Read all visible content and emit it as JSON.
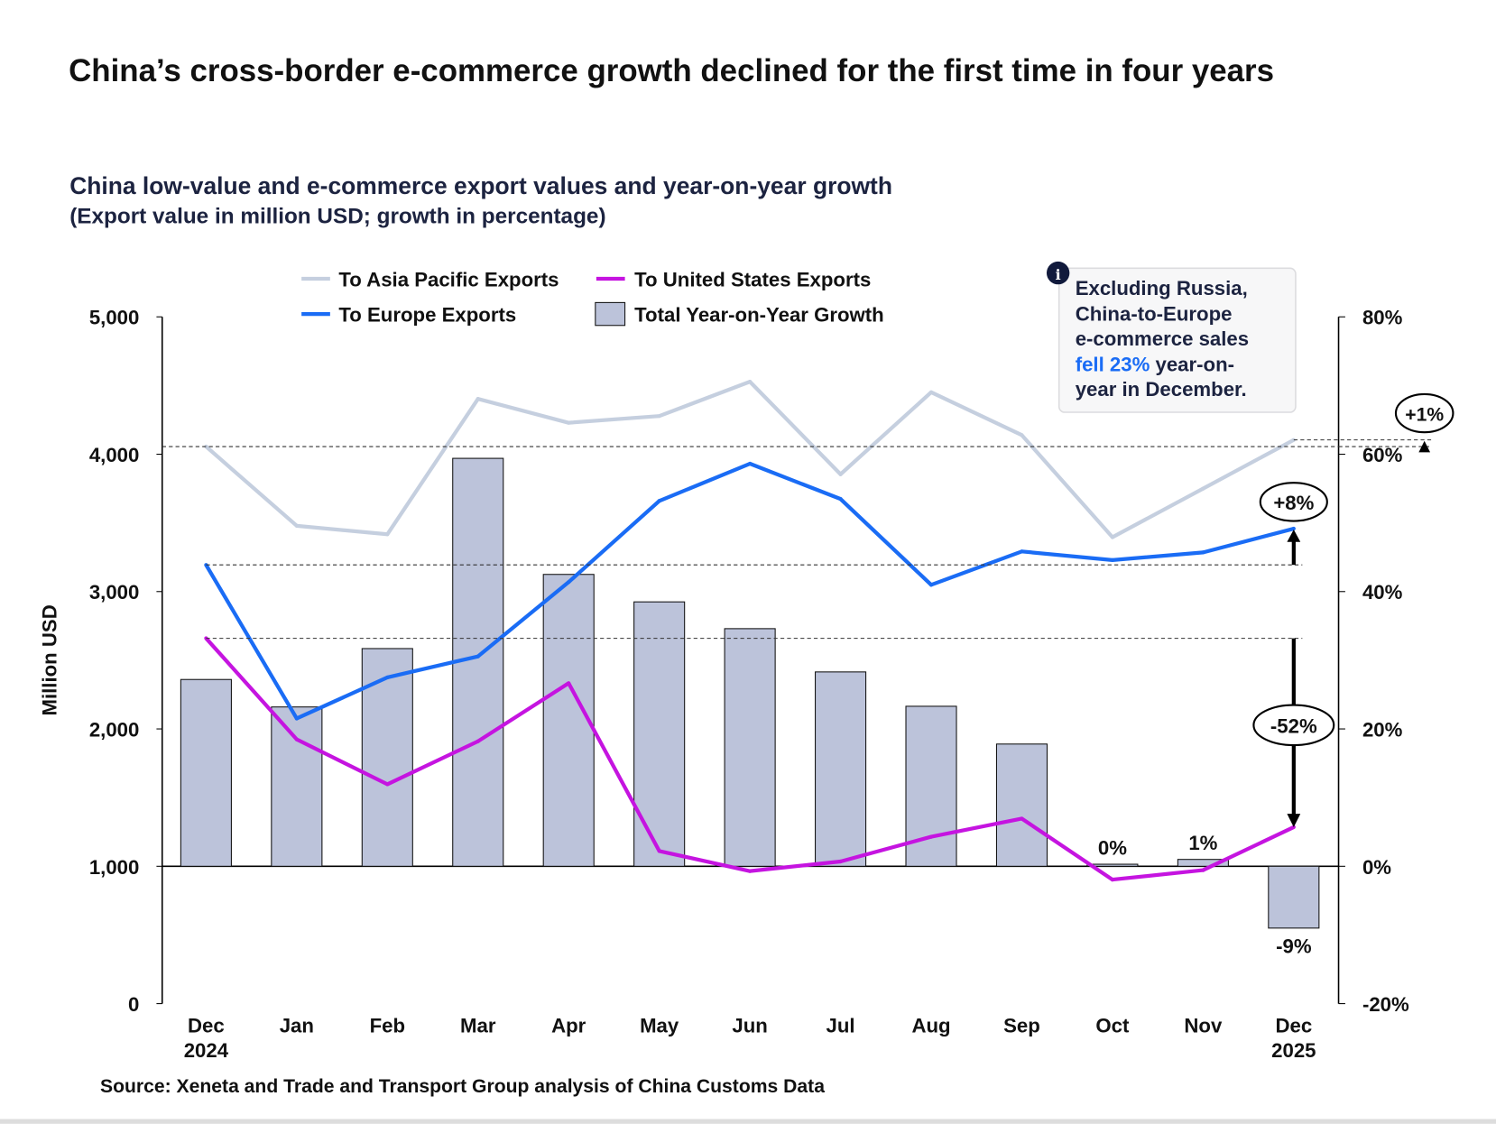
{
  "title": "China’s cross-border e-commerce growth declined for the first time in four years",
  "subtitle": "China low-value and e-commerce export values and year-on-year growth",
  "subtitle2": "(Export value in million USD; growth in percentage)",
  "source": "Source: Xeneta and Trade and Transport Group analysis of China Customs Data",
  "info_box": {
    "icon": "info-icon",
    "lines": [
      "Excluding Russia,",
      "China-to-Europe",
      "e-commerce sales"
    ],
    "highlight": "fell 23%",
    "line4_rest": " year-on-",
    "line5": "year in December.",
    "highlight_color": "#1a6cf5"
  },
  "annotations": {
    "asia": "+1%",
    "europe": "+8%",
    "us": "-52%"
  },
  "chart_data": {
    "type": "bar+line",
    "categories": [
      [
        "Dec",
        "2024"
      ],
      [
        "Jan",
        ""
      ],
      [
        "Feb",
        ""
      ],
      [
        "Mar",
        ""
      ],
      [
        "Apr",
        ""
      ],
      [
        "May",
        ""
      ],
      [
        "Jun",
        ""
      ],
      [
        "Jul",
        ""
      ],
      [
        "Aug",
        ""
      ],
      [
        "Sep",
        ""
      ],
      [
        "Oct",
        ""
      ],
      [
        "Nov",
        ""
      ],
      [
        "Dec",
        "2025"
      ]
    ],
    "ylabel": "Million USD",
    "ylim": [
      0,
      5000
    ],
    "yticks": [
      "0",
      "1,000",
      "2,000",
      "3,000",
      "4,000",
      "5,000"
    ],
    "y2lim": [
      -20,
      80
    ],
    "y2ticks": [
      "-20%",
      "0%",
      "20%",
      "40%",
      "60%",
      "80%"
    ],
    "legend_placement": "top",
    "series": [
      {
        "name": "To Asia Pacific Exports",
        "type": "line",
        "axis": "left",
        "color": "#c5cfdf",
        "values": [
          4056,
          3479,
          3417,
          4403,
          4229,
          4278,
          4528,
          3854,
          4451,
          4139,
          3396,
          3750,
          4104
        ]
      },
      {
        "name": "To United States Exports",
        "type": "line",
        "axis": "left",
        "color": "#c514e0",
        "values": [
          2660,
          1924,
          1597,
          1910,
          2333,
          1111,
          965,
          1035,
          1215,
          1347,
          903,
          972,
          1285
        ]
      },
      {
        "name": "To Europe Exports",
        "type": "line",
        "axis": "left",
        "color": "#1a6cf5",
        "values": [
          3194,
          2076,
          2375,
          2528,
          3069,
          3660,
          3931,
          3674,
          3049,
          3292,
          3229,
          3285,
          3458
        ]
      },
      {
        "name": "Total Year-on-Year Growth",
        "type": "bar",
        "axis": "right",
        "color": "#bcc3da",
        "values": [
          27.2,
          23.2,
          31.7,
          59.4,
          42.5,
          38.5,
          34.6,
          28.3,
          23.3,
          17.8,
          0.3,
          1,
          -9
        ],
        "data_labels": {
          "10": "0%",
          "11": "1%",
          "12": "-9%"
        }
      }
    ]
  }
}
